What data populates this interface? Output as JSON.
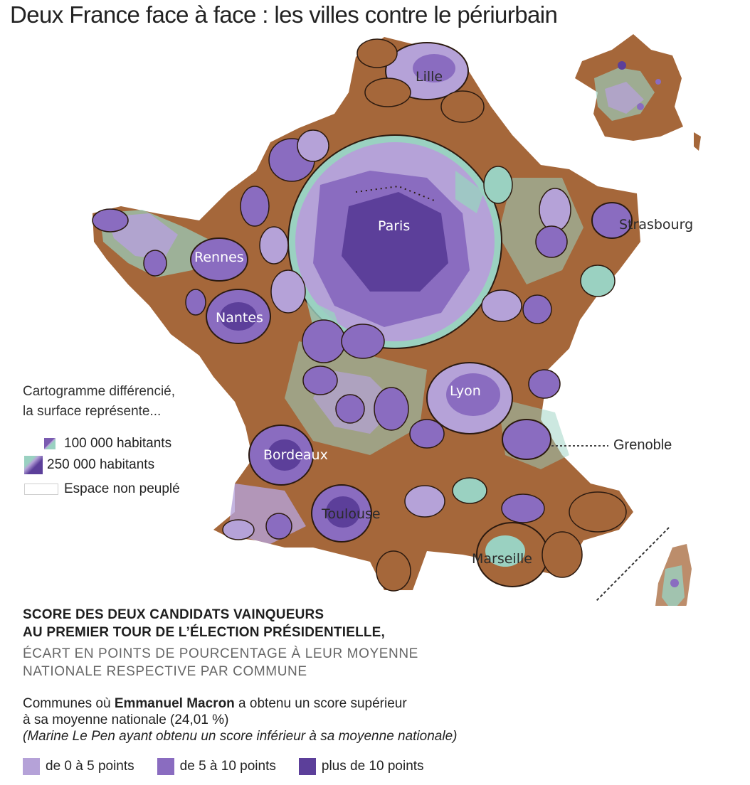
{
  "title": "Deux France face à face : les villes contre le périurbain",
  "map": {
    "colors": {
      "periurbain": "#a5673a",
      "neutral": "#9ad1c1",
      "macron_0_5": "#b5a2d8",
      "macron_5_10": "#8a6cc0",
      "macron_10_plus": "#5c3f9a",
      "outline": "#2b1a10"
    },
    "cities": {
      "lille": "Lille",
      "paris": "Paris",
      "strasbourg": "Strasbourg",
      "rennes": "Rennes",
      "nantes": "Nantes",
      "lyon": "Lyon",
      "grenoble": "Grenoble",
      "bordeaux": "Bordeaux",
      "toulouse": "Toulouse",
      "marseille": "Marseille"
    }
  },
  "legend": {
    "intro_line1": "Cartogramme différencié,",
    "intro_line2": "la surface représente...",
    "small": "100 000 habitants",
    "large": "250 000 habitants",
    "empty": "Espace non peuplé"
  },
  "score": {
    "title_line1": "SCORE DES DEUX CANDIDATS VAINQUEURS",
    "title_line2": "AU PREMIER TOUR DE L’ÉLECTION PRÉSIDENTIELLE,",
    "sub_line1": "ÉCART EN POINTS DE POURCENTAGE À LEUR MOYENNE",
    "sub_line2": "NATIONALE RESPECTIVE PAR COMMUNE",
    "macron_pre": "Communes où ",
    "macron_name": "Emmanuel Macron",
    "macron_post": " a obtenu un score supérieur",
    "macron_line2": "à sa moyenne nationale (24,01 %)",
    "macron_note": "(Marine Le Pen ayant obtenu un score inférieur à sa moyenne nationale)",
    "classes": [
      {
        "label": "de 0 à 5 points",
        "color": "#b5a2d8"
      },
      {
        "label": "de 5 à 10 points",
        "color": "#8a6cc0"
      },
      {
        "label": "plus de 10 points",
        "color": "#5c3f9a"
      }
    ]
  }
}
